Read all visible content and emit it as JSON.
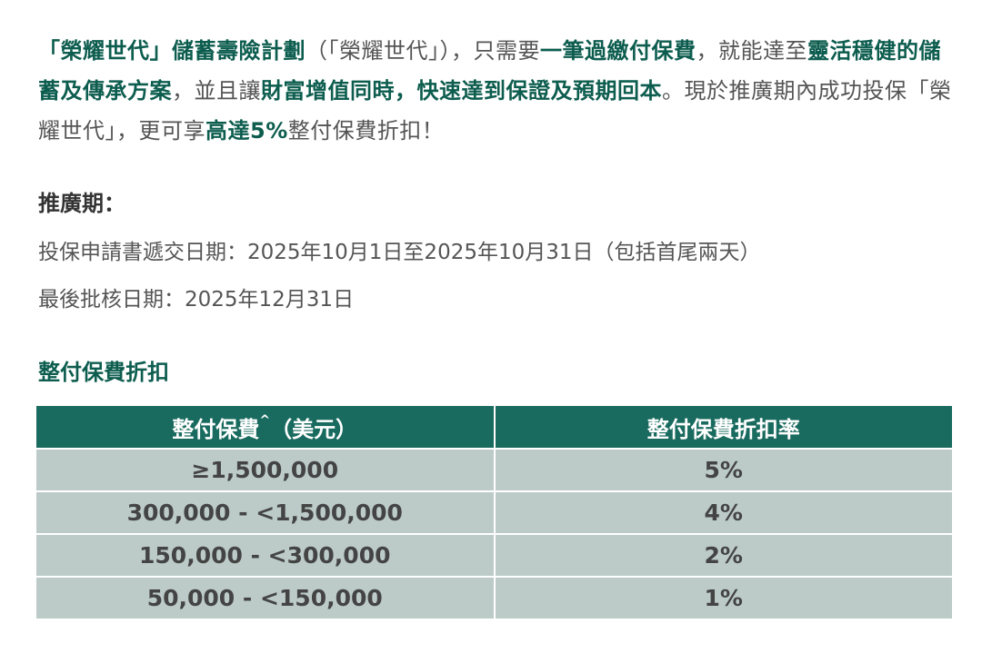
{
  "intro": {
    "s1": "「榮耀世代」儲蓄壽險計劃",
    "s2": "（「榮耀世代」），只需要",
    "s3": "一筆過繳付保費",
    "s4": "，就能達至",
    "s5": "靈活穩健的儲蓄及傳承方案",
    "s6": "，並且讓",
    "s7": "財富增值同時，快速達到保證及預期回本",
    "s8": "。現於推廣期內成功投保「榮耀世代」，更可享",
    "s9": "高達5%",
    "s10": "整付保費折扣！"
  },
  "promo": {
    "heading": "推廣期：",
    "submission": "投保申請書遞交日期：2025年10月1日至2025年10月31日（包括首尾兩天）",
    "approval": "最後批核日期：2025年12月31日"
  },
  "table": {
    "title": "整付保費折扣",
    "header_premium": "整付保費",
    "header_premium_mark": "^",
    "header_premium_unit": "（美元）",
    "header_rate": "整付保費折扣率",
    "rows": [
      {
        "premium": "≥1,500,000",
        "rate": "5%"
      },
      {
        "premium": "300,000 - <1,500,000",
        "rate": "4%"
      },
      {
        "premium": "150,000 - <300,000",
        "rate": "2%"
      },
      {
        "premium": "50,000 - <150,000",
        "rate": "1%"
      }
    ]
  },
  "colors": {
    "accent_green": "#0d5d4f",
    "table_header": "#1a6b5f",
    "table_row": "#bccbc8"
  }
}
